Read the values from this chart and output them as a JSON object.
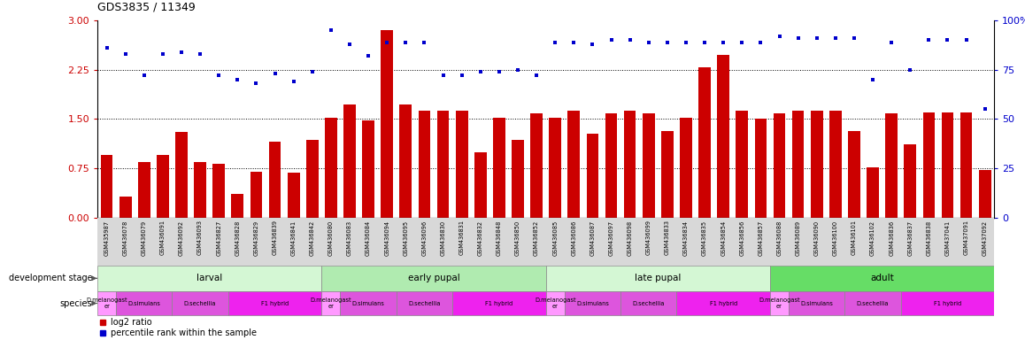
{
  "title": "GDS3835 / 11349",
  "samples": [
    "GSM435987",
    "GSM436078",
    "GSM436079",
    "GSM436091",
    "GSM436092",
    "GSM436093",
    "GSM436827",
    "GSM436828",
    "GSM436829",
    "GSM436839",
    "GSM436841",
    "GSM436842",
    "GSM436080",
    "GSM436083",
    "GSM436084",
    "GSM436094",
    "GSM436095",
    "GSM436096",
    "GSM436830",
    "GSM436831",
    "GSM436832",
    "GSM436848",
    "GSM436850",
    "GSM436852",
    "GSM436085",
    "GSM436086",
    "GSM436087",
    "GSM436097",
    "GSM436098",
    "GSM436099",
    "GSM436833",
    "GSM436834",
    "GSM436835",
    "GSM436854",
    "GSM436856",
    "GSM436857",
    "GSM436088",
    "GSM436089",
    "GSM436090",
    "GSM436100",
    "GSM436101",
    "GSM436102",
    "GSM436836",
    "GSM436837",
    "GSM436838",
    "GSM437041",
    "GSM437091",
    "GSM437092"
  ],
  "log2_values": [
    0.95,
    0.32,
    0.85,
    0.95,
    1.3,
    0.85,
    0.82,
    0.36,
    0.7,
    1.15,
    0.68,
    1.18,
    1.52,
    1.72,
    1.48,
    2.85,
    1.72,
    1.62,
    1.62,
    1.62,
    1.0,
    1.52,
    1.18,
    1.58,
    1.52,
    1.62,
    1.28,
    1.58,
    1.62,
    1.58,
    1.32,
    1.52,
    2.28,
    2.48,
    1.62,
    1.5,
    1.58,
    1.62,
    1.62,
    1.62,
    1.32,
    0.76,
    1.58,
    1.12,
    1.6,
    1.6,
    1.6,
    0.72
  ],
  "percentile_values": [
    86,
    83,
    72,
    83,
    84,
    83,
    72,
    70,
    68,
    73,
    69,
    74,
    95,
    88,
    82,
    89,
    89,
    89,
    72,
    72,
    74,
    74,
    75,
    72,
    89,
    89,
    88,
    90,
    90,
    89,
    89,
    89,
    89,
    89,
    89,
    89,
    92,
    91,
    91,
    91,
    91,
    70,
    89,
    75,
    90,
    90,
    90,
    55
  ],
  "bar_color": "#cc0000",
  "dot_color": "#0000cc",
  "left_ylim": [
    0,
    3.0
  ],
  "right_ylim": [
    0,
    100
  ],
  "left_yticks": [
    0,
    0.75,
    1.5,
    2.25,
    3.0
  ],
  "right_yticks": [
    0,
    25,
    50,
    75,
    100
  ],
  "hlines": [
    0.75,
    1.5,
    2.25
  ],
  "stages": [
    {
      "label": "larval",
      "start": 0,
      "end": 11,
      "color": "#d4f7d4"
    },
    {
      "label": "early pupal",
      "start": 12,
      "end": 23,
      "color": "#b0ebb0"
    },
    {
      "label": "late pupal",
      "start": 24,
      "end": 35,
      "color": "#d4f7d4"
    },
    {
      "label": "adult",
      "start": 36,
      "end": 47,
      "color": "#66dd66"
    }
  ],
  "species_groups": [
    {
      "label": "D.melanogast\ner",
      "start": 0,
      "end": 0,
      "color": "#ff99ff"
    },
    {
      "label": "D.simulans",
      "start": 1,
      "end": 3,
      "color": "#dd55dd"
    },
    {
      "label": "D.sechellia",
      "start": 4,
      "end": 6,
      "color": "#dd55dd"
    },
    {
      "label": "F1 hybrid",
      "start": 7,
      "end": 11,
      "color": "#ee22ee"
    },
    {
      "label": "D.melanogast\ner",
      "start": 12,
      "end": 12,
      "color": "#ff99ff"
    },
    {
      "label": "D.simulans",
      "start": 13,
      "end": 15,
      "color": "#dd55dd"
    },
    {
      "label": "D.sechellia",
      "start": 16,
      "end": 18,
      "color": "#dd55dd"
    },
    {
      "label": "F1 hybrid",
      "start": 19,
      "end": 23,
      "color": "#ee22ee"
    },
    {
      "label": "D.melanogast\ner",
      "start": 24,
      "end": 24,
      "color": "#ff99ff"
    },
    {
      "label": "D.simulans",
      "start": 25,
      "end": 27,
      "color": "#dd55dd"
    },
    {
      "label": "D.sechellia",
      "start": 28,
      "end": 30,
      "color": "#dd55dd"
    },
    {
      "label": "F1 hybrid",
      "start": 31,
      "end": 35,
      "color": "#ee22ee"
    },
    {
      "label": "D.melanogast\ner",
      "start": 36,
      "end": 36,
      "color": "#ff99ff"
    },
    {
      "label": "D.simulans",
      "start": 37,
      "end": 39,
      "color": "#dd55dd"
    },
    {
      "label": "D.sechellia",
      "start": 40,
      "end": 42,
      "color": "#dd55dd"
    },
    {
      "label": "F1 hybrid",
      "start": 43,
      "end": 47,
      "color": "#ee22ee"
    }
  ],
  "tick_bg_color": "#d8d8d8"
}
